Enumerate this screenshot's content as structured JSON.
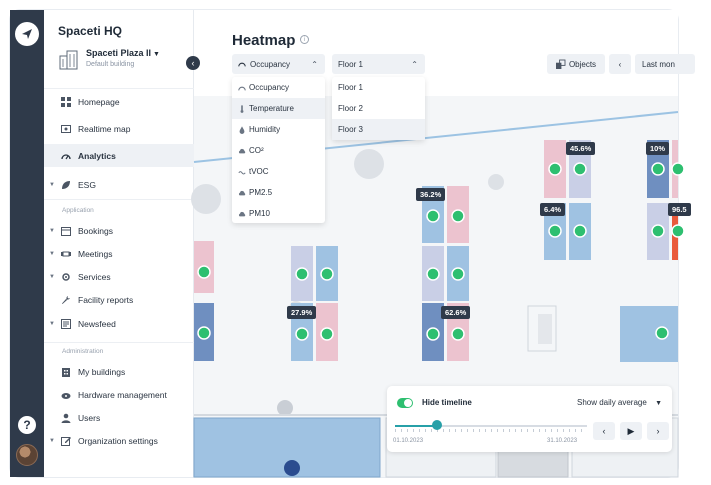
{
  "org": {
    "name": "Spaceti HQ"
  },
  "building": {
    "name": "Spaceti Plaza II",
    "subtitle": "Default building"
  },
  "nav": {
    "items": [
      {
        "label": "Homepage"
      },
      {
        "label": "Realtime map"
      },
      {
        "label": "Analytics"
      },
      {
        "label": "ESG"
      }
    ],
    "section_application": "Application",
    "application_items": [
      {
        "label": "Bookings"
      },
      {
        "label": "Meetings"
      },
      {
        "label": "Services"
      },
      {
        "label": "Facility reports"
      },
      {
        "label": "Newsfeed"
      }
    ],
    "section_administration": "Administration",
    "administration_items": [
      {
        "label": "My buildings"
      },
      {
        "label": "Hardware management"
      },
      {
        "label": "Users"
      },
      {
        "label": "Organization settings"
      }
    ]
  },
  "page": {
    "title": "Heatmap"
  },
  "metric_select": {
    "value": "Occupancy",
    "options": [
      "Occupancy",
      "Temperature",
      "Humidity",
      "CO²",
      "tVOC",
      "PM2.5",
      "PM10"
    ]
  },
  "floor_select": {
    "value": "Floor 1",
    "options": [
      "Floor 1",
      "Floor 2",
      "Floor 3"
    ]
  },
  "toolbar": {
    "objects_label": "Objects",
    "last_label": "Last mon"
  },
  "badges": {
    "b1": "45.6%",
    "b2": "10%",
    "b3": "36.2%",
    "b4": "6.4%",
    "b5": "96.5",
    "b6": "27.9%",
    "b7": "62.6%"
  },
  "timeline": {
    "label": "Hide timeline",
    "mode": "Show daily average",
    "start_date": "01.10.2023",
    "end_date": "31.10.2023",
    "position": 0.22
  },
  "colors": {
    "accent_green": "#2ebf70",
    "sidebar_dark": "#2f3a4a",
    "occupancy_low": "#b9c8e2",
    "occupancy_mid": "#6f8fc0",
    "occupancy_high": "#e95a3c",
    "occupancy_pink": "#ecc3cf"
  }
}
